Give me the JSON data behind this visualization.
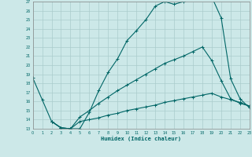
{
  "xlabel": "Humidex (Indice chaleur)",
  "xlim": [
    0,
    23
  ],
  "ylim": [
    13,
    27
  ],
  "yticks": [
    13,
    14,
    15,
    16,
    17,
    18,
    19,
    20,
    21,
    22,
    23,
    24,
    25,
    26,
    27
  ],
  "xticks": [
    0,
    1,
    2,
    3,
    4,
    5,
    6,
    7,
    8,
    9,
    10,
    11,
    12,
    13,
    14,
    15,
    16,
    17,
    18,
    19,
    20,
    21,
    22,
    23
  ],
  "bg_color": "#cce8e8",
  "grid_color": "#aacccc",
  "line_color": "#006666",
  "line1_x": [
    0,
    1,
    2,
    3,
    4,
    5,
    6,
    7,
    8,
    9,
    10,
    11,
    12,
    13,
    14,
    15,
    16,
    17,
    18,
    19,
    20,
    21,
    22,
    23
  ],
  "line1_y": [
    18.6,
    16.2,
    13.8,
    13.1,
    13.0,
    13.0,
    14.8,
    17.2,
    19.2,
    20.7,
    22.7,
    23.8,
    25.0,
    26.5,
    27.0,
    26.7,
    27.0,
    27.5,
    27.5,
    27.5,
    25.2,
    18.5,
    16.3,
    15.3
  ],
  "line2_x": [
    2,
    3,
    4,
    5,
    6,
    7,
    8,
    9,
    10,
    11,
    12,
    13,
    14,
    15,
    16,
    17,
    18,
    19,
    20,
    21,
    22,
    23
  ],
  "line2_y": [
    13.8,
    13.1,
    13.0,
    14.3,
    15.0,
    15.8,
    16.5,
    17.2,
    17.8,
    18.4,
    19.0,
    19.6,
    20.2,
    20.6,
    21.0,
    21.5,
    22.0,
    20.5,
    18.3,
    16.3,
    15.8,
    15.5
  ],
  "line3_x": [
    2,
    3,
    4,
    5,
    6,
    7,
    8,
    9,
    10,
    11,
    12,
    13,
    14,
    15,
    16,
    17,
    18,
    19,
    20,
    21,
    22,
    23
  ],
  "line3_y": [
    13.8,
    13.1,
    13.0,
    13.8,
    14.0,
    14.2,
    14.5,
    14.7,
    15.0,
    15.2,
    15.4,
    15.6,
    15.9,
    16.1,
    16.3,
    16.5,
    16.7,
    16.9,
    16.5,
    16.2,
    15.9,
    15.5
  ]
}
